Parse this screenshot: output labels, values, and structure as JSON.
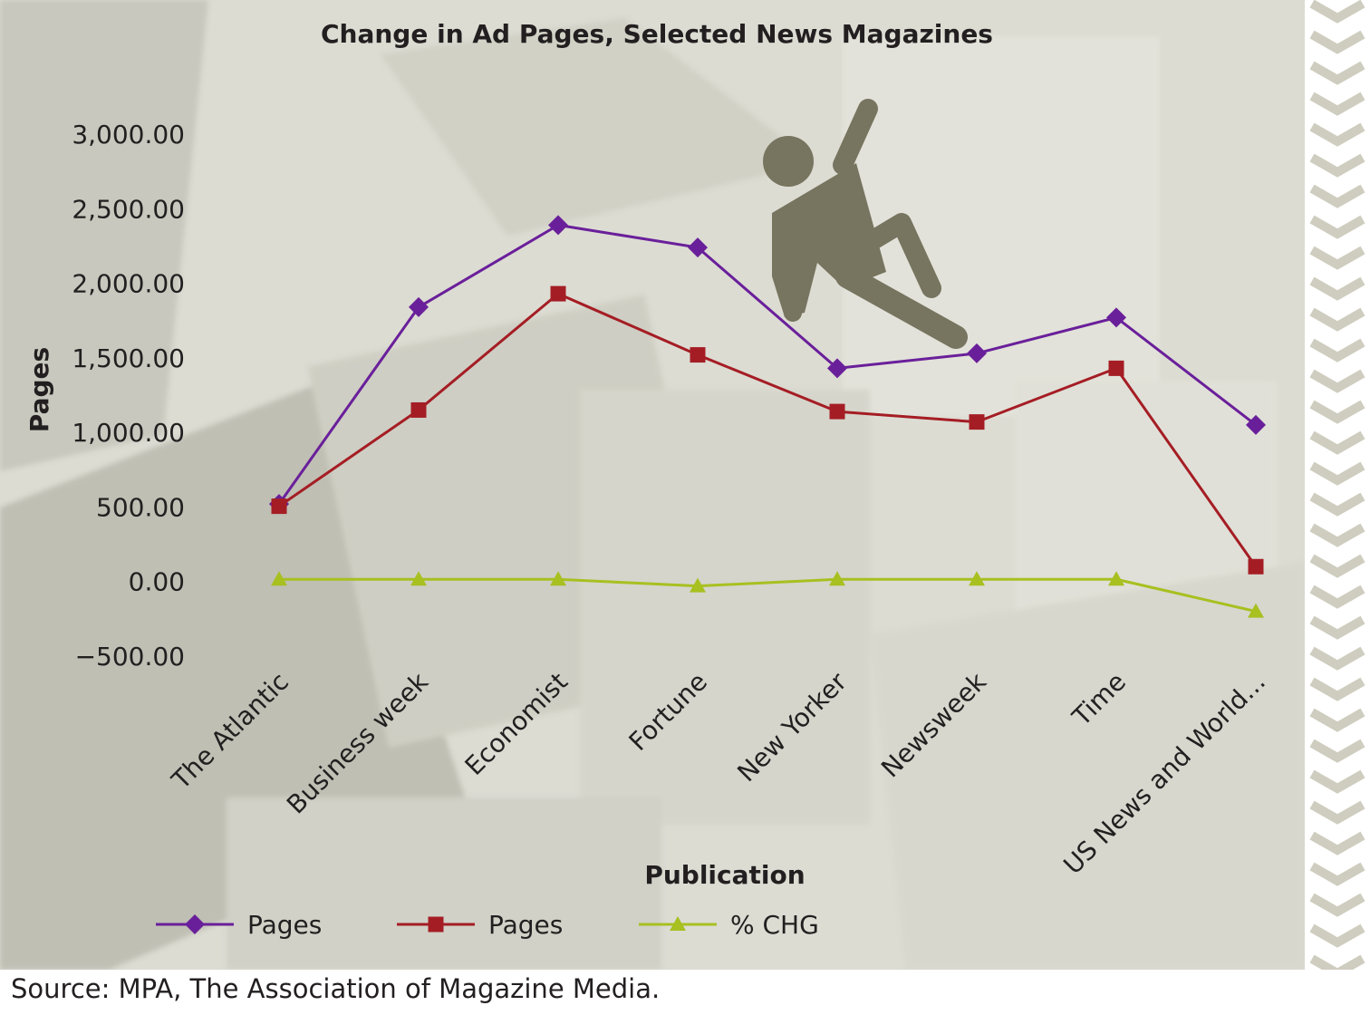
{
  "source_note": "Source: MPA, The Association of Magazine Media.",
  "icon": "falling-person-icon",
  "colors": {
    "background": "#dcdcd3",
    "pages_series_1": "#6a1f9a",
    "pages_series_2": "#a51d24",
    "pct_chg_series": "#a8c020",
    "icon_fill": "#77745f",
    "chevron": "#cfcdbf",
    "text": "#231f20"
  },
  "chart_data": {
    "type": "line",
    "title": "Change in Ad Pages, Selected News Magazines",
    "xlabel": "Publication",
    "ylabel": "Pages",
    "ylim": [
      -500,
      3000
    ],
    "yticks": [
      "3,000.00",
      "2,500.00",
      "2,000.00",
      "1,500.00",
      "1,000.00",
      "500.00",
      "0.00",
      "−500.00"
    ],
    "ytick_values": [
      3000,
      2500,
      2000,
      1500,
      1000,
      500,
      0,
      -500
    ],
    "categories": [
      "The Atlantic",
      "Business week",
      "Economist",
      "Fortune",
      "New Yorker",
      "Newsweek",
      "Time",
      "US News and World..."
    ],
    "grid": false,
    "legend_position": "bottom",
    "series": [
      {
        "name": "Pages",
        "marker": "diamond",
        "values": [
          520,
          1840,
          2390,
          2240,
          1430,
          1530,
          1770,
          1050
        ]
      },
      {
        "name": "Pages",
        "marker": "square",
        "values": [
          505,
          1150,
          1930,
          1520,
          1140,
          1070,
          1430,
          100
        ]
      },
      {
        "name": "% CHG",
        "marker": "triangle",
        "values": [
          15,
          15,
          15,
          -30,
          15,
          15,
          15,
          -200
        ]
      }
    ]
  }
}
